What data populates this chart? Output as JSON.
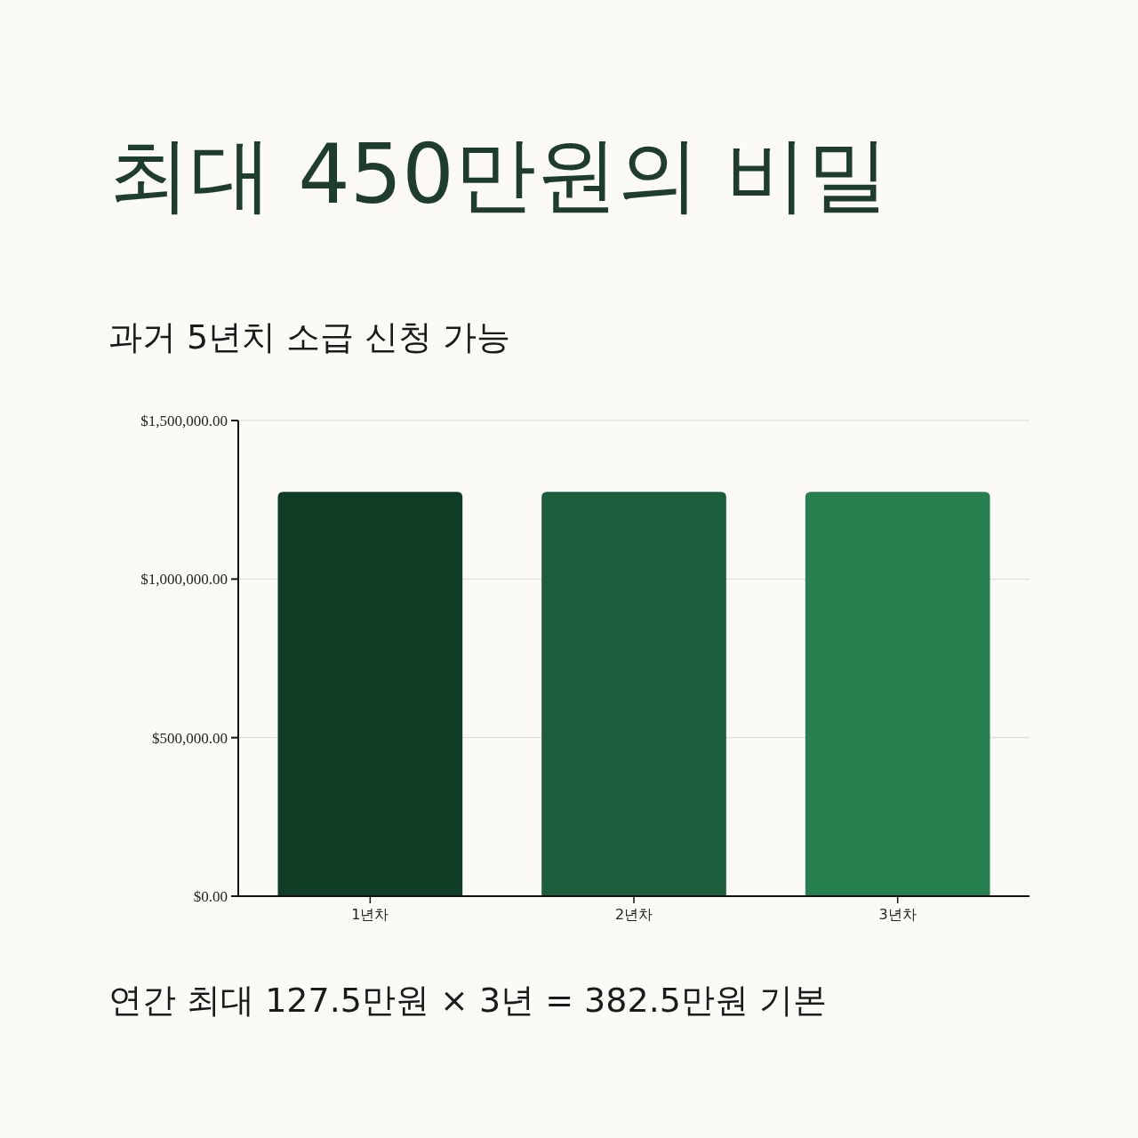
{
  "chart_data": {
    "type": "bar",
    "title": "최대 450만원의 비밀",
    "subtitle": "과거 5년치 소급 신청 가능",
    "categories": [
      "1년차",
      "2년차",
      "3년차"
    ],
    "values": [
      1275000,
      1275000,
      1275000
    ],
    "colors": [
      "#0f3d26",
      "#1c5e3b",
      "#26804f"
    ],
    "ylim": [
      0,
      1500000
    ],
    "yticks": [
      {
        "value": 0,
        "label": "$0.00"
      },
      {
        "value": 500000,
        "label": "$500,000.00"
      },
      {
        "value": 1000000,
        "label": "$1,000,000.00"
      },
      {
        "value": 1500000,
        "label": "$1,500,000.00"
      }
    ],
    "grid": "y",
    "annotations": [
      "연간 최대 127.5만원 × 3년 = 382.5만원 기본"
    ]
  }
}
